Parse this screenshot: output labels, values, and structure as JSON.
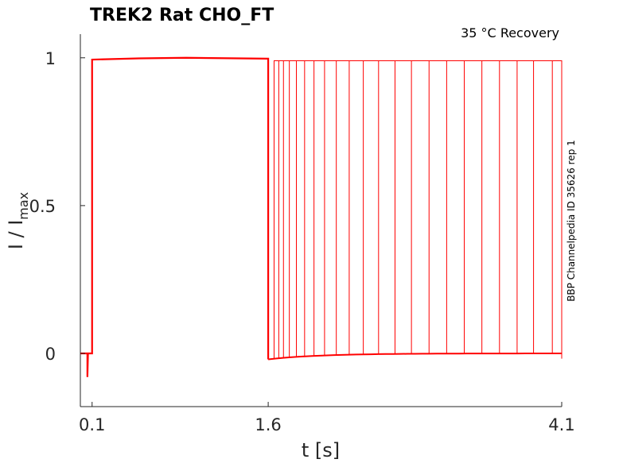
{
  "chart_data": {
    "type": "line",
    "title": "TREK2  Rat  CHO_FT",
    "subtitle": "35 °C  Recovery",
    "side_label": "BBP Channelpedia ID 35626 rep 1",
    "xlabel": "t [s]",
    "ylabel_main": "I / I",
    "ylabel_sub": "max",
    "xlim": [
      0.0,
      4.1
    ],
    "ylim": [
      -0.18,
      1.08
    ],
    "xticks": [
      {
        "value": 0.1,
        "label": "0.1"
      },
      {
        "value": 1.6,
        "label": "1.6"
      },
      {
        "value": 4.1,
        "label": "4.1"
      }
    ],
    "yticks": [
      {
        "value": 0,
        "label": "0"
      },
      {
        "value": 0.5,
        "label": "0.5"
      },
      {
        "value": 1,
        "label": "1"
      }
    ],
    "grid": false,
    "color": "#ff0000",
    "first_pulse": {
      "start": 0.1,
      "end": 1.6,
      "baseline": 0.0,
      "onset_dip": -0.08,
      "peak": 1.0,
      "after_drop": -0.02
    },
    "recovery_pulses": {
      "starts": [
        1.65,
        1.69,
        1.73,
        1.78,
        1.84,
        1.91,
        1.99,
        2.08,
        2.18,
        2.29,
        2.41,
        2.54,
        2.68,
        2.82,
        2.97,
        3.12,
        3.27,
        3.42,
        3.57,
        3.72,
        3.86,
        4.02
      ],
      "amplitudes": [
        0.99,
        0.99,
        0.99,
        0.99,
        0.99,
        0.99,
        0.99,
        0.99,
        0.99,
        0.99,
        0.99,
        0.99,
        0.99,
        0.99,
        0.99,
        0.99,
        0.99,
        0.99,
        0.99,
        0.99,
        0.99,
        0.99
      ],
      "end": 4.1,
      "baseline_start": -0.02,
      "baseline_end": 0.0
    }
  }
}
